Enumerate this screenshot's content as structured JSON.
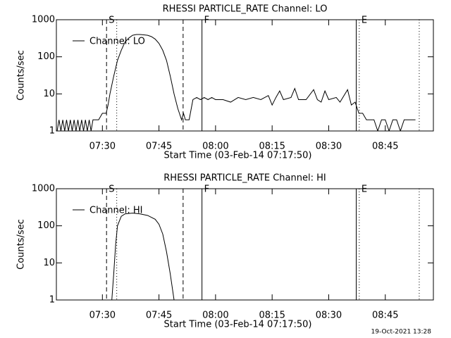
{
  "chart_data": [
    {
      "type": "line",
      "title": "RHESSI PARTICLE_RATE Channel: LO",
      "xlabel": "Start Time (03-Feb-14 07:17:50)",
      "ylabel": "Counts/sec",
      "log_y": true,
      "xlim": [
        17.8,
        117.75
      ],
      "ylim": [
        1,
        1000
      ],
      "yticks": [
        1,
        10,
        100,
        1000
      ],
      "xticks": [
        {
          "value": 30,
          "label": "07:30"
        },
        {
          "value": 45,
          "label": "07:45"
        },
        {
          "value": 60,
          "label": "08:00"
        },
        {
          "value": 75,
          "label": "08:15"
        },
        {
          "value": 90,
          "label": "08:30"
        },
        {
          "value": 105,
          "label": "08:45"
        }
      ],
      "legend": "upper left",
      "markers": [
        {
          "x": 31.1,
          "style": "dashed"
        },
        {
          "x": 33.8,
          "style": "dotted"
        },
        {
          "x": 51.4,
          "style": "dashed"
        },
        {
          "x": 56.4,
          "style": "solid"
        },
        {
          "x": 97.3,
          "style": "solid"
        },
        {
          "x": 98.1,
          "style": "dotted"
        },
        {
          "x": 114,
          "style": "dotted"
        }
      ],
      "flags": [
        {
          "x": 31.1,
          "label": "S"
        },
        {
          "x": 56.4,
          "label": "F"
        },
        {
          "x": 98.1,
          "label": "E"
        }
      ],
      "series": [
        {
          "name": "Channel: LO",
          "color": "#000000",
          "x": [
            18,
            18.5,
            19,
            19.5,
            20,
            20.5,
            21,
            21.5,
            22,
            22.5,
            23,
            23.5,
            24,
            24.5,
            25,
            25.5,
            26,
            26.5,
            27,
            27.5,
            28,
            29,
            30,
            31,
            31.5,
            32,
            33,
            34,
            35,
            36,
            37,
            38,
            39,
            40,
            41,
            42,
            43,
            44,
            45,
            46,
            47,
            48,
            49,
            50,
            51,
            51.5,
            52,
            53,
            54,
            55,
            56,
            57,
            58,
            59,
            60,
            62,
            64,
            66,
            68,
            70,
            72,
            74,
            75,
            76,
            77,
            78,
            80,
            81,
            82,
            84,
            86,
            87,
            88,
            89,
            90,
            92,
            93,
            95,
            96,
            97,
            98,
            99,
            100,
            101,
            102,
            103,
            104,
            105,
            106,
            107,
            108,
            109,
            110,
            111,
            112,
            113
          ],
          "values": [
            1,
            2,
            1,
            2,
            1,
            2,
            1,
            2,
            1,
            2,
            1,
            2,
            1,
            2,
            1,
            2,
            1,
            2,
            1,
            2,
            2,
            2,
            3,
            3,
            5,
            10,
            30,
            80,
            150,
            250,
            320,
            380,
            400,
            400,
            390,
            380,
            350,
            300,
            230,
            150,
            80,
            30,
            10,
            4,
            2,
            3,
            2,
            2,
            7,
            8,
            7,
            8,
            7,
            8,
            7,
            7,
            6,
            8,
            7,
            8,
            7,
            9,
            5,
            8,
            12,
            7,
            8,
            14,
            7,
            7,
            13,
            7,
            6,
            12,
            7,
            8,
            6,
            13,
            5,
            6,
            3,
            3,
            2,
            2,
            2,
            1,
            2,
            2,
            1,
            2,
            2,
            1,
            2,
            2,
            2,
            2
          ]
        }
      ]
    },
    {
      "type": "line",
      "title": "RHESSI PARTICLE_RATE Channel: HI",
      "xlabel": "Start Time (03-Feb-14 07:17:50)",
      "ylabel": "Counts/sec",
      "log_y": true,
      "xlim": [
        17.8,
        117.75
      ],
      "ylim": [
        1,
        1000
      ],
      "yticks": [
        1,
        10,
        100,
        1000
      ],
      "xticks": [
        {
          "value": 30,
          "label": "07:30"
        },
        {
          "value": 45,
          "label": "07:45"
        },
        {
          "value": 60,
          "label": "08:00"
        },
        {
          "value": 75,
          "label": "08:15"
        },
        {
          "value": 90,
          "label": "08:30"
        },
        {
          "value": 105,
          "label": "08:45"
        }
      ],
      "legend": "upper left",
      "markers": [
        {
          "x": 31.1,
          "style": "dashed"
        },
        {
          "x": 33.8,
          "style": "dotted"
        },
        {
          "x": 51.4,
          "style": "dashed"
        },
        {
          "x": 56.4,
          "style": "solid"
        },
        {
          "x": 97.3,
          "style": "solid"
        },
        {
          "x": 98.1,
          "style": "dotted"
        },
        {
          "x": 114,
          "style": "dotted"
        }
      ],
      "flags": [
        {
          "x": 31.1,
          "label": "S"
        },
        {
          "x": 56.4,
          "label": "F"
        },
        {
          "x": 98.1,
          "label": "E"
        }
      ],
      "series": [
        {
          "name": "Channel: HI",
          "color": "#000000",
          "x": [
            32.5,
            33,
            33.5,
            34,
            35,
            36,
            38,
            40,
            42,
            44,
            45,
            46,
            47,
            48,
            49
          ],
          "values": [
            1,
            5,
            30,
            100,
            180,
            210,
            220,
            210,
            190,
            150,
            110,
            60,
            20,
            5,
            1
          ]
        }
      ]
    }
  ],
  "timestamp": "19-Oct-2021 13:28"
}
